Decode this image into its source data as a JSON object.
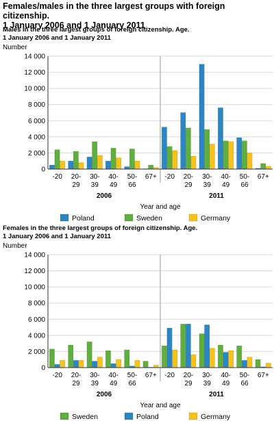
{
  "page_title_lines": [
    "Females/males in the three largest groups with foreign citizenship.",
    "1 January 2006 and 1 January 2011"
  ],
  "chart_data": [
    {
      "type": "bar",
      "title_lines": [
        "Males in the three largest groups of foreign citizenship. Age.",
        "1 January 2006 and 1 January 2011"
      ],
      "ylabel": "Number",
      "xlabel": "Year and age",
      "ylim": [
        0,
        14000
      ],
      "yticks": [
        0,
        2000,
        4000,
        6000,
        8000,
        10000,
        12000,
        14000
      ],
      "ytick_labels": [
        "0",
        "2 000",
        "4 000",
        "6 000",
        "8 000",
        "10 000",
        "12 000",
        "14 000"
      ],
      "groups": [
        {
          "name": "2006",
          "categories": [
            [
              "-20"
            ],
            [
              "20-",
              "29"
            ],
            [
              "30-",
              "39"
            ],
            [
              "40-",
              "49"
            ],
            [
              "50-",
              "66"
            ],
            [
              "67+"
            ]
          ]
        },
        {
          "name": "2011",
          "categories": [
            [
              "-20"
            ],
            [
              "20-",
              "29"
            ],
            [
              "30-",
              "39"
            ],
            [
              "40-",
              "49"
            ],
            [
              "50-",
              "66"
            ],
            [
              "67+"
            ]
          ]
        }
      ],
      "series": [
        {
          "name": "Poland",
          "color": "#2a86c4",
          "values": [
            500,
            1000,
            1500,
            1000,
            300,
            50,
            5200,
            7000,
            13000,
            7600,
            3900,
            100
          ]
        },
        {
          "name": "Sweden",
          "color": "#5faf3e",
          "values": [
            2400,
            2200,
            3400,
            2600,
            2500,
            500,
            2800,
            5100,
            4900,
            3500,
            3500,
            700
          ]
        },
        {
          "name": "Germany",
          "color": "#f7c21b",
          "values": [
            1000,
            800,
            1700,
            1400,
            1000,
            200,
            2300,
            1600,
            3100,
            3400,
            2000,
            350
          ]
        }
      ],
      "legend": [
        {
          "name": "Poland",
          "color": "#2a86c4"
        },
        {
          "name": "Sweden",
          "color": "#5faf3e"
        },
        {
          "name": "Germany",
          "color": "#f7c21b"
        }
      ],
      "legend_position": "bottom",
      "grid": true
    },
    {
      "type": "bar",
      "title_lines": [
        "Females in the three largest groups of foreign citizenship. Age.",
        "1 January 2006 and 1 January 2011"
      ],
      "ylabel": "Number",
      "xlabel": "Year and age",
      "ylim": [
        0,
        14000
      ],
      "yticks": [
        0,
        2000,
        4000,
        6000,
        8000,
        10000,
        12000,
        14000
      ],
      "ytick_labels": [
        "0",
        "2 000",
        "4 000",
        "6 000",
        "8 000",
        "10 000",
        "12 000",
        "14 000"
      ],
      "groups": [
        {
          "name": "2006",
          "categories": [
            [
              "-20"
            ],
            [
              "20-",
              "29"
            ],
            [
              "30-",
              "39"
            ],
            [
              "40-",
              "49"
            ],
            [
              "50-",
              "66"
            ],
            [
              "67+"
            ]
          ]
        },
        {
          "name": "2011",
          "categories": [
            [
              "-20"
            ],
            [
              "20-",
              "29"
            ],
            [
              "30-",
              "39"
            ],
            [
              "40-",
              "49"
            ],
            [
              "50-",
              "66"
            ],
            [
              "67+"
            ]
          ]
        }
      ],
      "series": [
        {
          "name": "Sweden",
          "color": "#5faf3e",
          "values": [
            2300,
            2800,
            3200,
            2100,
            2200,
            800,
            2700,
            5400,
            4200,
            2800,
            2700,
            1000
          ]
        },
        {
          "name": "Poland",
          "color": "#2a86c4",
          "values": [
            400,
            900,
            800,
            500,
            200,
            50,
            4900,
            5400,
            5300,
            1900,
            900,
            100
          ]
        },
        {
          "name": "Germany",
          "color": "#f7c21b",
          "values": [
            900,
            900,
            1300,
            1000,
            900,
            300,
            2200,
            1600,
            2400,
            2100,
            1300,
            550
          ]
        }
      ],
      "legend": [
        {
          "name": "Sweden",
          "color": "#5faf3e"
        },
        {
          "name": "Poland",
          "color": "#2a86c4"
        },
        {
          "name": "Germany",
          "color": "#f7c21b"
        }
      ],
      "legend_position": "bottom",
      "grid": true
    }
  ]
}
